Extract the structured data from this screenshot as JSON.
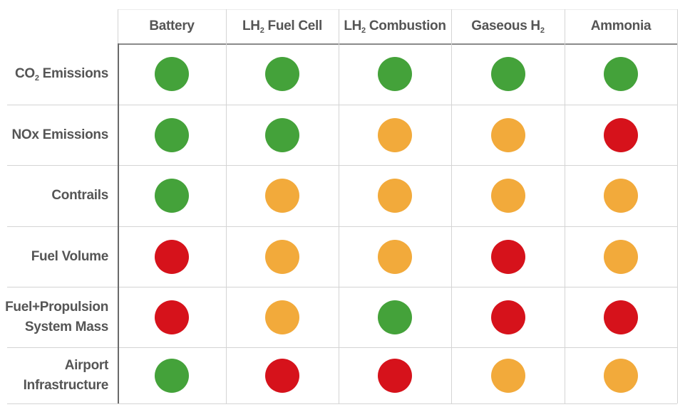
{
  "colors": {
    "good": "#44A23A",
    "moderate": "#F2AA3B",
    "poor": "#D6121B"
  },
  "columns": [
    {
      "label": "Battery",
      "sub": ""
    },
    {
      "label": "LH",
      "sub": "2",
      "suffix": " Fuel Cell"
    },
    {
      "label": "LH",
      "sub": "2",
      "suffix": " Combustion"
    },
    {
      "label": "Gaseous H",
      "sub": "2",
      "suffix": ""
    },
    {
      "label": "Ammonia",
      "sub": ""
    }
  ],
  "rows": [
    {
      "line1": "CO",
      "sub": "2",
      "line1_suffix": " Emissions",
      "line2": "",
      "ratings": [
        "good",
        "good",
        "good",
        "good",
        "good"
      ]
    },
    {
      "line1": "NOx Emissions",
      "sub": "",
      "line1_suffix": "",
      "line2": "",
      "ratings": [
        "good",
        "good",
        "moderate",
        "moderate",
        "poor"
      ]
    },
    {
      "line1": "Contrails",
      "sub": "",
      "line1_suffix": "",
      "line2": "",
      "ratings": [
        "good",
        "moderate",
        "moderate",
        "moderate",
        "moderate"
      ]
    },
    {
      "line1": "Fuel Volume",
      "sub": "",
      "line1_suffix": "",
      "line2": "",
      "ratings": [
        "poor",
        "moderate",
        "moderate",
        "poor",
        "moderate"
      ]
    },
    {
      "line1": "Fuel+Propulsion",
      "sub": "",
      "line1_suffix": "",
      "line2": "System Mass",
      "ratings": [
        "poor",
        "moderate",
        "good",
        "poor",
        "poor"
      ]
    },
    {
      "line1": "Airport",
      "sub": "",
      "line1_suffix": "",
      "line2": "Infrastructure",
      "ratings": [
        "good",
        "poor",
        "poor",
        "moderate",
        "moderate"
      ]
    }
  ]
}
